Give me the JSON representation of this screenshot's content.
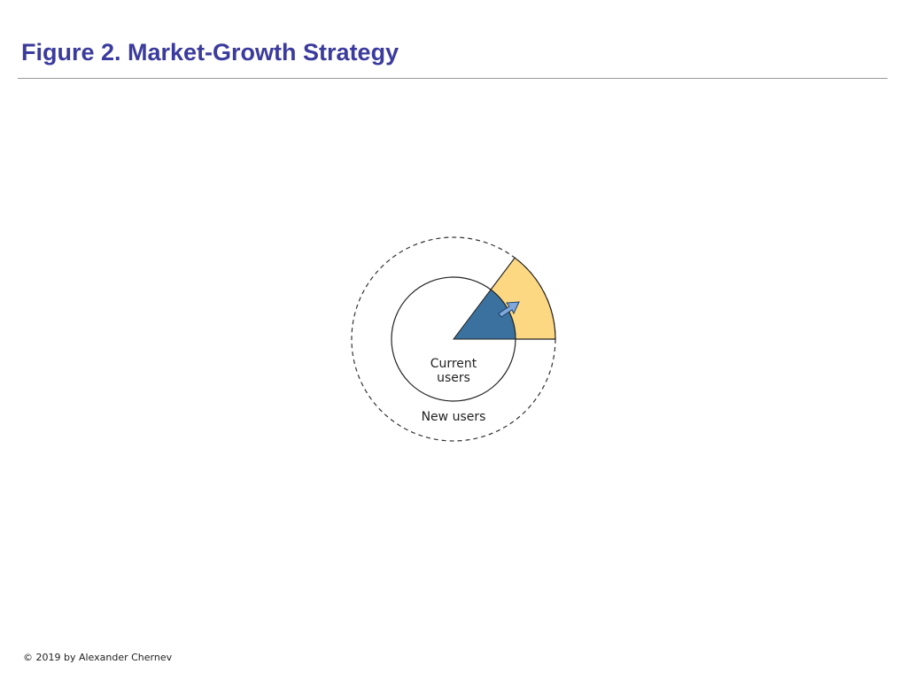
{
  "header": {
    "title": "Figure 2. Market-Growth Strategy"
  },
  "diagram": {
    "current_users": {
      "lines": [
        "Current",
        "users"
      ]
    },
    "new_users": "New users"
  },
  "footer": {
    "copyright": "© 2019 by Alexander Chernev"
  }
}
